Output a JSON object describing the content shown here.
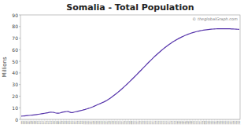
{
  "chart_data": {
    "type": "line",
    "title": "Somalia - Total Population",
    "y_label": "Millions",
    "annotations": [
      "© theglobalGraph.com"
    ],
    "color": "#5533aa",
    "grid": false,
    "xlim": [
      1959.5,
      2100.5
    ],
    "ylim": [
      0,
      90
    ],
    "yticks": [
      0,
      10,
      20,
      30,
      40,
      50,
      60,
      70,
      80,
      90
    ],
    "xticks": [
      1960,
      1961,
      1962,
      1963,
      1964,
      1965,
      1966,
      1967,
      1968,
      1969,
      1970,
      1971,
      1972,
      1973,
      1974,
      1975,
      1976,
      1977,
      1978,
      1979,
      1980,
      1981,
      1982,
      1983,
      1984,
      1985,
      1986,
      1987,
      1988,
      1989,
      1990,
      1991,
      1992,
      1993,
      1994,
      1995,
      1996,
      1997,
      1998,
      1999,
      2000,
      2001,
      2002,
      2003,
      2004,
      2005,
      2006,
      2007,
      2008,
      2009,
      2010,
      2011,
      2012,
      2013,
      2014,
      2015,
      2016,
      2017,
      2018,
      2019,
      2020,
      2021,
      2022,
      2023,
      2024,
      2025,
      2026,
      2027,
      2028,
      2029,
      2030,
      2031,
      2032,
      2033,
      2034,
      2035,
      2036,
      2037,
      2038,
      2039,
      2040,
      2041,
      2042,
      2043,
      2044,
      2045,
      2046,
      2047,
      2048,
      2049,
      2050,
      2051,
      2052,
      2053,
      2054,
      2055,
      2056,
      2057,
      2058,
      2059,
      2060,
      2061,
      2062,
      2063,
      2064,
      2065,
      2066,
      2067,
      2068,
      2069,
      2070,
      2071,
      2072,
      2073,
      2074,
      2075,
      2076,
      2077,
      2078,
      2079,
      2080,
      2081,
      2082,
      2083,
      2084,
      2085,
      2086,
      2087,
      2088,
      2089,
      2090,
      2091,
      2092,
      2093,
      2094,
      2095,
      2096,
      2097,
      2098,
      2099,
      2100
    ],
    "x": [
      1960,
      1961,
      1962,
      1963,
      1964,
      1965,
      1966,
      1967,
      1968,
      1969,
      1970,
      1971,
      1972,
      1973,
      1974,
      1975,
      1976,
      1977,
      1978,
      1979,
      1980,
      1981,
      1982,
      1983,
      1984,
      1985,
      1986,
      1987,
      1988,
      1989,
      1990,
      1991,
      1992,
      1993,
      1994,
      1995,
      1996,
      1997,
      1998,
      1999,
      2000,
      2001,
      2002,
      2003,
      2004,
      2005,
      2006,
      2007,
      2008,
      2009,
      2010,
      2011,
      2012,
      2013,
      2014,
      2015,
      2016,
      2017,
      2018,
      2019,
      2020,
      2021,
      2022,
      2023,
      2024,
      2025,
      2026,
      2027,
      2028,
      2029,
      2030,
      2031,
      2032,
      2033,
      2034,
      2035,
      2036,
      2037,
      2038,
      2039,
      2040,
      2041,
      2042,
      2043,
      2044,
      2045,
      2046,
      2047,
      2048,
      2049,
      2050,
      2051,
      2052,
      2053,
      2054,
      2055,
      2056,
      2057,
      2058,
      2059,
      2060,
      2061,
      2062,
      2063,
      2064,
      2065,
      2066,
      2067,
      2068,
      2069,
      2070,
      2071,
      2072,
      2073,
      2074,
      2075,
      2076,
      2077,
      2078,
      2079,
      2080,
      2081,
      2082,
      2083,
      2084,
      2085,
      2086,
      2087,
      2088,
      2089,
      2090,
      2091,
      2092,
      2093,
      2094,
      2095,
      2096,
      2097,
      2098,
      2099,
      2100
    ],
    "values": [
      2.76,
      2.87,
      2.99,
      3.12,
      3.25,
      3.39,
      3.54,
      3.7,
      3.86,
      4.03,
      4.2,
      4.39,
      4.58,
      4.79,
      5.01,
      5.23,
      5.47,
      5.72,
      5.98,
      6.25,
      6.08,
      5.95,
      5.59,
      5.36,
      5.37,
      5.6,
      5.98,
      6.31,
      6.54,
      6.77,
      6.94,
      6.36,
      5.84,
      5.87,
      6.24,
      6.58,
      6.89,
      7.18,
      7.48,
      7.81,
      8.17,
      8.55,
      8.96,
      9.38,
      9.84,
      10.33,
      10.87,
      11.44,
      12.04,
      12.64,
      13.23,
      13.8,
      14.37,
      14.97,
      15.63,
      16.37,
      17.19,
      18.09,
      19.06,
      20.08,
      21.1,
      22.16,
      23.26,
      24.39,
      25.55,
      26.74,
      27.96,
      29.2,
      30.46,
      31.74,
      33.04,
      34.35,
      35.68,
      37.02,
      38.37,
      39.74,
      41.11,
      42.49,
      43.88,
      45.27,
      46.65,
      48.02,
      49.38,
      50.72,
      52.04,
      53.34,
      54.61,
      55.85,
      57.06,
      58.24,
      59.39,
      60.5,
      61.58,
      62.62,
      63.62,
      64.59,
      65.52,
      66.41,
      67.26,
      68.08,
      68.86,
      69.6,
      70.31,
      70.98,
      71.61,
      72.21,
      72.77,
      73.3,
      73.79,
      74.25,
      74.68,
      75.08,
      75.44,
      75.78,
      76.09,
      76.37,
      76.63,
      76.87,
      77.08,
      77.27,
      77.44,
      77.59,
      77.72,
      77.83,
      77.92,
      77.99,
      78.05,
      78.09,
      78.11,
      78.13,
      78.13,
      78.12,
      78.09,
      78.06,
      78.01,
      77.96,
      77.89,
      77.82,
      77.74,
      77.65,
      77.55
    ]
  }
}
